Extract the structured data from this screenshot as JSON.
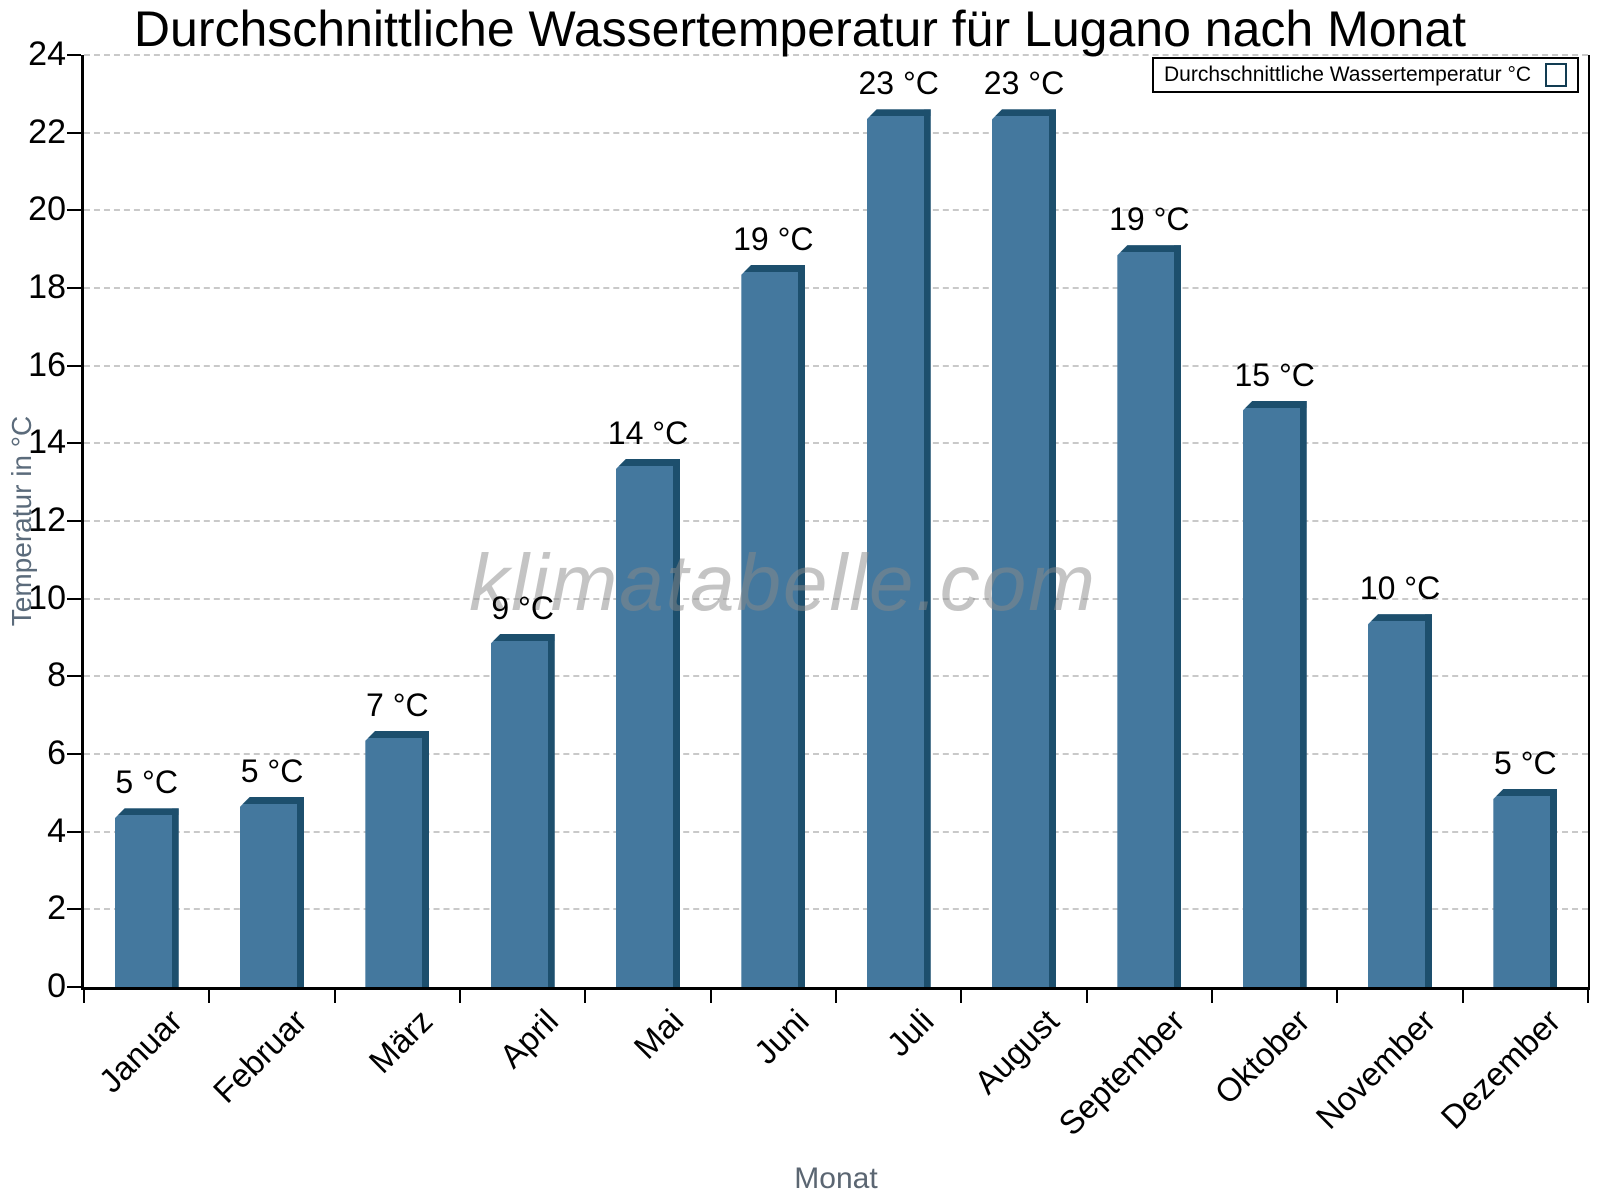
{
  "watermark": {
    "text": "klimatabelle.com"
  },
  "chart_data": {
    "type": "bar",
    "title": "Durchschnittliche Wassertemperatur für Lugano nach Monat",
    "series_name": "Durchschnittliche Wassertemperatur °C",
    "categories": [
      "Januar",
      "Februar",
      "März",
      "April",
      "Mai",
      "Juni",
      "Juli",
      "August",
      "September",
      "Oktober",
      "November",
      "Dezember"
    ],
    "values": [
      4.6,
      4.9,
      6.6,
      9.1,
      13.6,
      18.6,
      22.6,
      22.6,
      19.1,
      15.1,
      9.6,
      5.1
    ],
    "value_labels": [
      "5 °C",
      "5 °C",
      "7 °C",
      "9 °C",
      "14 °C",
      "19 °C",
      "23 °C",
      "23 °C",
      "19 °C",
      "15 °C",
      "10 °C",
      "5 °C"
    ],
    "xlabel": "Monat",
    "ylabel": "Temperatur in °C",
    "ylim": [
      0,
      24
    ],
    "y_ticks": [
      0,
      2,
      4,
      6,
      8,
      10,
      12,
      14,
      16,
      18,
      20,
      22,
      24
    ],
    "grid": "horizontal-dashed",
    "legend_position": "top-right",
    "bar_color": "#44789E",
    "bar_edge_color": "#1D4F6D",
    "axis_title_color": "#5B6B7B"
  }
}
